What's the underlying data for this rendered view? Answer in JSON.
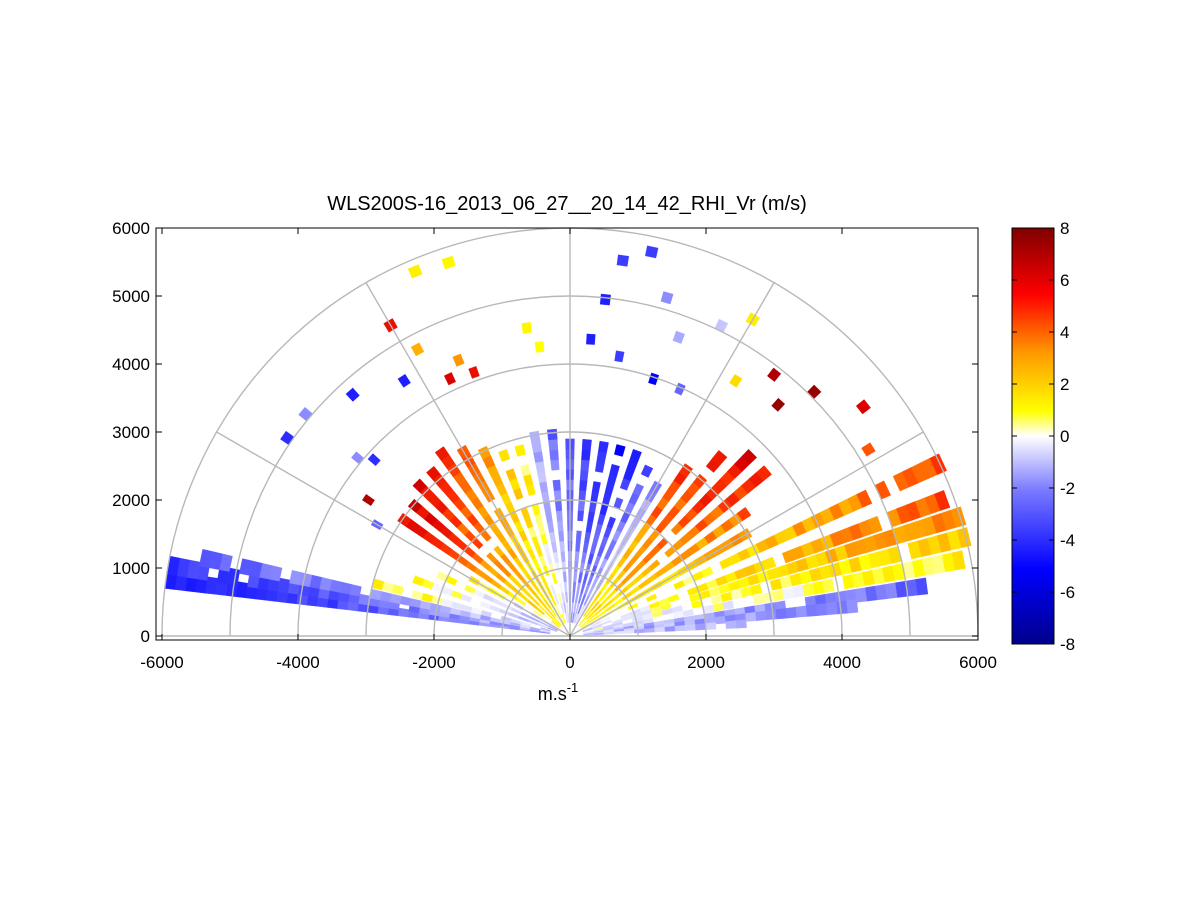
{
  "chart_data": {
    "type": "heatmap",
    "subtype": "polar RHI sector scan (range-height indicator)",
    "title": "WLS200S-16_2013_06_27__20_14_42_RHI_Vr (m/s)",
    "xlabel": "m.s",
    "xlabel_superscript": "-1",
    "ylabel": "",
    "xlim": [
      -6000,
      6000
    ],
    "ylim": [
      -100,
      6000
    ],
    "x_ticks": [
      "-6000",
      "-4000",
      "-2000",
      "0",
      "2000",
      "4000",
      "6000"
    ],
    "y_ticks": [
      "0",
      "1000",
      "2000",
      "3000",
      "4000",
      "5000",
      "6000"
    ],
    "grid": "polar: range rings every 1000 m, radial spokes every 30 degrees",
    "range_rings": [
      1000,
      2000,
      3000,
      4000,
      5000,
      6000
    ],
    "spoke_angles_deg": [
      0,
      30,
      60,
      90,
      120,
      150,
      180
    ],
    "colorbar": {
      "min": -8,
      "max": 8,
      "ticks": [
        "8",
        "6",
        "4",
        "2",
        "0",
        "-2",
        "-4",
        "-6",
        "-8"
      ],
      "colormap": "blue-white-yellow-red diverging",
      "stops": [
        "#00008b",
        "#0000ff",
        "#6f6fff",
        "#ffffff",
        "#ffff00",
        "#ff9900",
        "#ff0000",
        "#800000"
      ]
    },
    "data_note": "Radial velocity Vr (m/s) by elevation angle and range; positive (red) on right side, negative (blue) overhead and far left",
    "beams": [
      {
        "elev_deg": 172,
        "r_start": 300,
        "r_end": 6000,
        "vr_start": -1.5,
        "vr_end": -5.5
      },
      {
        "elev_deg": 170,
        "r_start": 300,
        "r_end": 5900,
        "vr_start": -1.2,
        "vr_end": -4.5
      },
      {
        "elev_deg": 168,
        "r_start": 300,
        "r_end": 5500,
        "vr_start": -1.0,
        "vr_end": -3.0
      },
      {
        "elev_deg": 165,
        "r_start": 300,
        "r_end": 3000,
        "vr_start": -0.8,
        "vr_end": 0.8
      },
      {
        "elev_deg": 160,
        "r_start": 200,
        "r_end": 2500,
        "vr_start": -1.5,
        "vr_end": 0.5
      },
      {
        "elev_deg": 155,
        "r_start": 200,
        "r_end": 2200,
        "vr_start": -2.0,
        "vr_end": 0.8
      },
      {
        "elev_deg": 150,
        "r_start": 200,
        "r_end": 1700,
        "vr_start": -1.5,
        "vr_end": 1.0
      },
      {
        "elev_deg": 145,
        "r_start": 200,
        "r_end": 3000,
        "vr_start": -0.5,
        "vr_end": 6.0
      },
      {
        "elev_deg": 140,
        "r_start": 200,
        "r_end": 3000,
        "vr_start": 0.5,
        "vr_end": 6.5
      },
      {
        "elev_deg": 135,
        "r_start": 200,
        "r_end": 3200,
        "vr_start": 0.8,
        "vr_end": 6.0
      },
      {
        "elev_deg": 130,
        "r_start": 200,
        "r_end": 3200,
        "vr_start": 0.8,
        "vr_end": 5.5
      },
      {
        "elev_deg": 125,
        "r_start": 200,
        "r_end": 3300,
        "vr_start": 0.5,
        "vr_end": 5.0
      },
      {
        "elev_deg": 120,
        "r_start": 200,
        "r_end": 3200,
        "vr_start": 0.2,
        "vr_end": 4.0
      },
      {
        "elev_deg": 115,
        "r_start": 200,
        "r_end": 3000,
        "vr_start": 0.2,
        "vr_end": 3.0
      },
      {
        "elev_deg": 110,
        "r_start": 200,
        "r_end": 2900,
        "vr_start": 0.0,
        "vr_end": 2.0
      },
      {
        "elev_deg": 105,
        "r_start": 200,
        "r_end": 2900,
        "vr_start": -0.3,
        "vr_end": 1.0
      },
      {
        "elev_deg": 100,
        "r_start": 200,
        "r_end": 3000,
        "vr_start": -0.5,
        "vr_end": -1.5
      },
      {
        "elev_deg": 95,
        "r_start": 200,
        "r_end": 3000,
        "vr_start": -0.8,
        "vr_end": -3.0
      },
      {
        "elev_deg": 90,
        "r_start": 200,
        "r_end": 2900,
        "vr_start": -1.0,
        "vr_end": -3.5
      },
      {
        "elev_deg": 85,
        "r_start": 200,
        "r_end": 2900,
        "vr_start": -1.2,
        "vr_end": -4.5
      },
      {
        "elev_deg": 80,
        "r_start": 200,
        "r_end": 2900,
        "vr_start": -1.5,
        "vr_end": -5.0
      },
      {
        "elev_deg": 75,
        "r_start": 200,
        "r_end": 2800,
        "vr_start": -1.5,
        "vr_end": -5.5
      },
      {
        "elev_deg": 70,
        "r_start": 200,
        "r_end": 2800,
        "vr_start": -1.5,
        "vr_end": -5.0
      },
      {
        "elev_deg": 65,
        "r_start": 200,
        "r_end": 2700,
        "vr_start": -1.0,
        "vr_end": -3.5
      },
      {
        "elev_deg": 60,
        "r_start": 200,
        "r_end": 2500,
        "vr_start": -0.5,
        "vr_end": -2.0
      },
      {
        "elev_deg": 55,
        "r_start": 200,
        "r_end": 3000,
        "vr_start": 0.5,
        "vr_end": 5.0
      },
      {
        "elev_deg": 50,
        "r_start": 200,
        "r_end": 3500,
        "vr_start": 0.8,
        "vr_end": 5.5
      },
      {
        "elev_deg": 45,
        "r_start": 200,
        "r_end": 3800,
        "vr_start": 1.0,
        "vr_end": 6.0
      },
      {
        "elev_deg": 40,
        "r_start": 200,
        "r_end": 3700,
        "vr_start": 1.0,
        "vr_end": 5.0
      },
      {
        "elev_deg": 35,
        "r_start": 200,
        "r_end": 3200,
        "vr_start": 0.5,
        "vr_end": 4.0
      },
      {
        "elev_deg": 30,
        "r_start": 200,
        "r_end": 3000,
        "vr_start": 0.0,
        "vr_end": 3.0
      },
      {
        "elev_deg": 25,
        "r_start": 200,
        "r_end": 6000,
        "vr_start": -0.5,
        "vr_end": 4.5
      },
      {
        "elev_deg": 20,
        "r_start": 200,
        "r_end": 6000,
        "vr_start": -0.8,
        "vr_end": 4.5
      },
      {
        "elev_deg": 17,
        "r_start": 200,
        "r_end": 6000,
        "vr_start": -0.5,
        "vr_end": 3.5
      },
      {
        "elev_deg": 14,
        "r_start": 200,
        "r_end": 6000,
        "vr_start": -0.5,
        "vr_end": 2.0
      },
      {
        "elev_deg": 11,
        "r_start": 200,
        "r_end": 5800,
        "vr_start": -0.8,
        "vr_end": 1.0
      },
      {
        "elev_deg": 8,
        "r_start": 200,
        "r_end": 5300,
        "vr_start": -1.0,
        "vr_end": -3.0
      },
      {
        "elev_deg": 6,
        "r_start": 200,
        "r_end": 4200,
        "vr_start": -1.0,
        "vr_end": -2.5
      },
      {
        "elev_deg": 4,
        "r_start": 200,
        "r_end": 2500,
        "vr_start": -0.8,
        "vr_end": -1.5
      }
    ],
    "scattered_cells": [
      {
        "elev_deg": 120,
        "r": 5200,
        "vr": 5.5
      },
      {
        "elev_deg": 118,
        "r": 4700,
        "vr": 2.5
      },
      {
        "elev_deg": 113,
        "r": 5750,
        "vr": 1.0
      },
      {
        "elev_deg": 108,
        "r": 5700,
        "vr": 0.8
      },
      {
        "elev_deg": 98,
        "r": 4500,
        "vr": 0.8
      },
      {
        "elev_deg": 96,
        "r": 4200,
        "vr": 0.6
      },
      {
        "elev_deg": 115,
        "r": 4100,
        "vr": 6.0
      },
      {
        "elev_deg": 112,
        "r": 4300,
        "vr": 3.0
      },
      {
        "elev_deg": 110,
        "r": 4050,
        "vr": 5.5
      },
      {
        "elev_deg": 123,
        "r": 4400,
        "vr": -5.0
      },
      {
        "elev_deg": 132,
        "r": 4700,
        "vr": -5.0
      },
      {
        "elev_deg": 140,
        "r": 5000,
        "vr": -2.0
      },
      {
        "elev_deg": 145,
        "r": 5000,
        "vr": -4.5
      },
      {
        "elev_deg": 140,
        "r": 4000,
        "vr": -2.0
      },
      {
        "elev_deg": 138,
        "r": 3800,
        "vr": -4.5
      },
      {
        "elev_deg": 146,
        "r": 3500,
        "vr": 7.0
      },
      {
        "elev_deg": 150,
        "r": 3200,
        "vr": -3.0
      },
      {
        "elev_deg": 82,
        "r": 5500,
        "vr": -4.0
      },
      {
        "elev_deg": 78,
        "r": 5700,
        "vr": -4.0
      },
      {
        "elev_deg": 84,
        "r": 4900,
        "vr": -5.0
      },
      {
        "elev_deg": 74,
        "r": 5100,
        "vr": -2.0
      },
      {
        "elev_deg": 70,
        "r": 4600,
        "vr": -1.5
      },
      {
        "elev_deg": 64,
        "r": 5000,
        "vr": -1.0
      },
      {
        "elev_deg": 60,
        "r": 5300,
        "vr": 1.0
      },
      {
        "elev_deg": 57,
        "r": 4400,
        "vr": 1.5
      },
      {
        "elev_deg": 52,
        "r": 4800,
        "vr": 7.0
      },
      {
        "elev_deg": 48,
        "r": 4500,
        "vr": 7.5
      },
      {
        "elev_deg": 45,
        "r": 5000,
        "vr": 7.5
      },
      {
        "elev_deg": 80,
        "r": 4100,
        "vr": -4.0
      },
      {
        "elev_deg": 86,
        "r": 4300,
        "vr": -5.0
      },
      {
        "elev_deg": 72,
        "r": 3900,
        "vr": -6.0
      },
      {
        "elev_deg": 66,
        "r": 3900,
        "vr": -3.0
      },
      {
        "elev_deg": 38,
        "r": 5400,
        "vr": 6.0
      },
      {
        "elev_deg": 32,
        "r": 5100,
        "vr": 4.0
      }
    ]
  }
}
